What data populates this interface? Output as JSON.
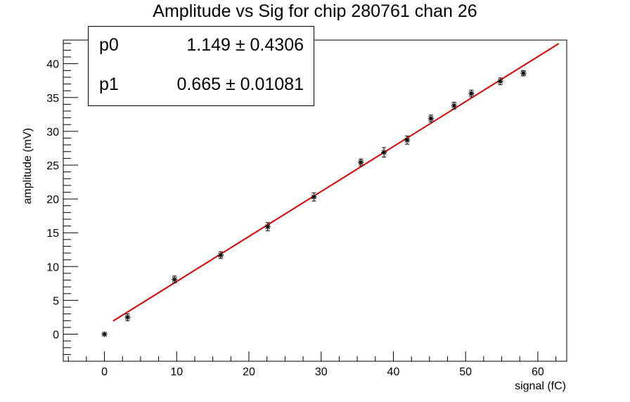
{
  "chart_data": {
    "type": "scatter",
    "title": "Amplitude vs Sig for chip 280761 chan 26",
    "xlabel": "signal (fC)",
    "ylabel": "amplitude (mV)",
    "xlim": [
      -5.7,
      64
    ],
    "ylim": [
      -4,
      43.5
    ],
    "x_ticks": [
      0,
      10,
      20,
      30,
      40,
      50,
      60
    ],
    "y_ticks": [
      0,
      5,
      10,
      15,
      20,
      25,
      30,
      35,
      40
    ],
    "points": [
      {
        "x": 0.0,
        "y": 0.0,
        "err": 0.0
      },
      {
        "x": 3.2,
        "y": 2.5,
        "err": 0.5
      },
      {
        "x": 9.7,
        "y": 8.1,
        "err": 0.5
      },
      {
        "x": 16.1,
        "y": 11.7,
        "err": 0.5
      },
      {
        "x": 22.6,
        "y": 15.9,
        "err": 0.6
      },
      {
        "x": 29.0,
        "y": 20.3,
        "err": 0.6
      },
      {
        "x": 35.5,
        "y": 25.4,
        "err": 0.5
      },
      {
        "x": 38.7,
        "y": 26.9,
        "err": 0.7
      },
      {
        "x": 41.9,
        "y": 28.7,
        "err": 0.6
      },
      {
        "x": 45.2,
        "y": 31.9,
        "err": 0.5
      },
      {
        "x": 48.4,
        "y": 33.8,
        "err": 0.5
      },
      {
        "x": 50.8,
        "y": 35.6,
        "err": 0.5
      },
      {
        "x": 54.8,
        "y": 37.4,
        "err": 0.5
      },
      {
        "x": 58.0,
        "y": 38.6,
        "err": 0.4
      }
    ],
    "fit": {
      "p0": 1.149,
      "p1": 0.665,
      "x_range": [
        1.2,
        62.9
      ],
      "color": "#dd0000"
    },
    "stats": [
      {
        "name": "p0",
        "value": "1.149",
        "error": "0.4306"
      },
      {
        "name": "p1",
        "value": "0.665",
        "error": "0.01081"
      }
    ],
    "legend_position": "top-left",
    "grid": false
  }
}
